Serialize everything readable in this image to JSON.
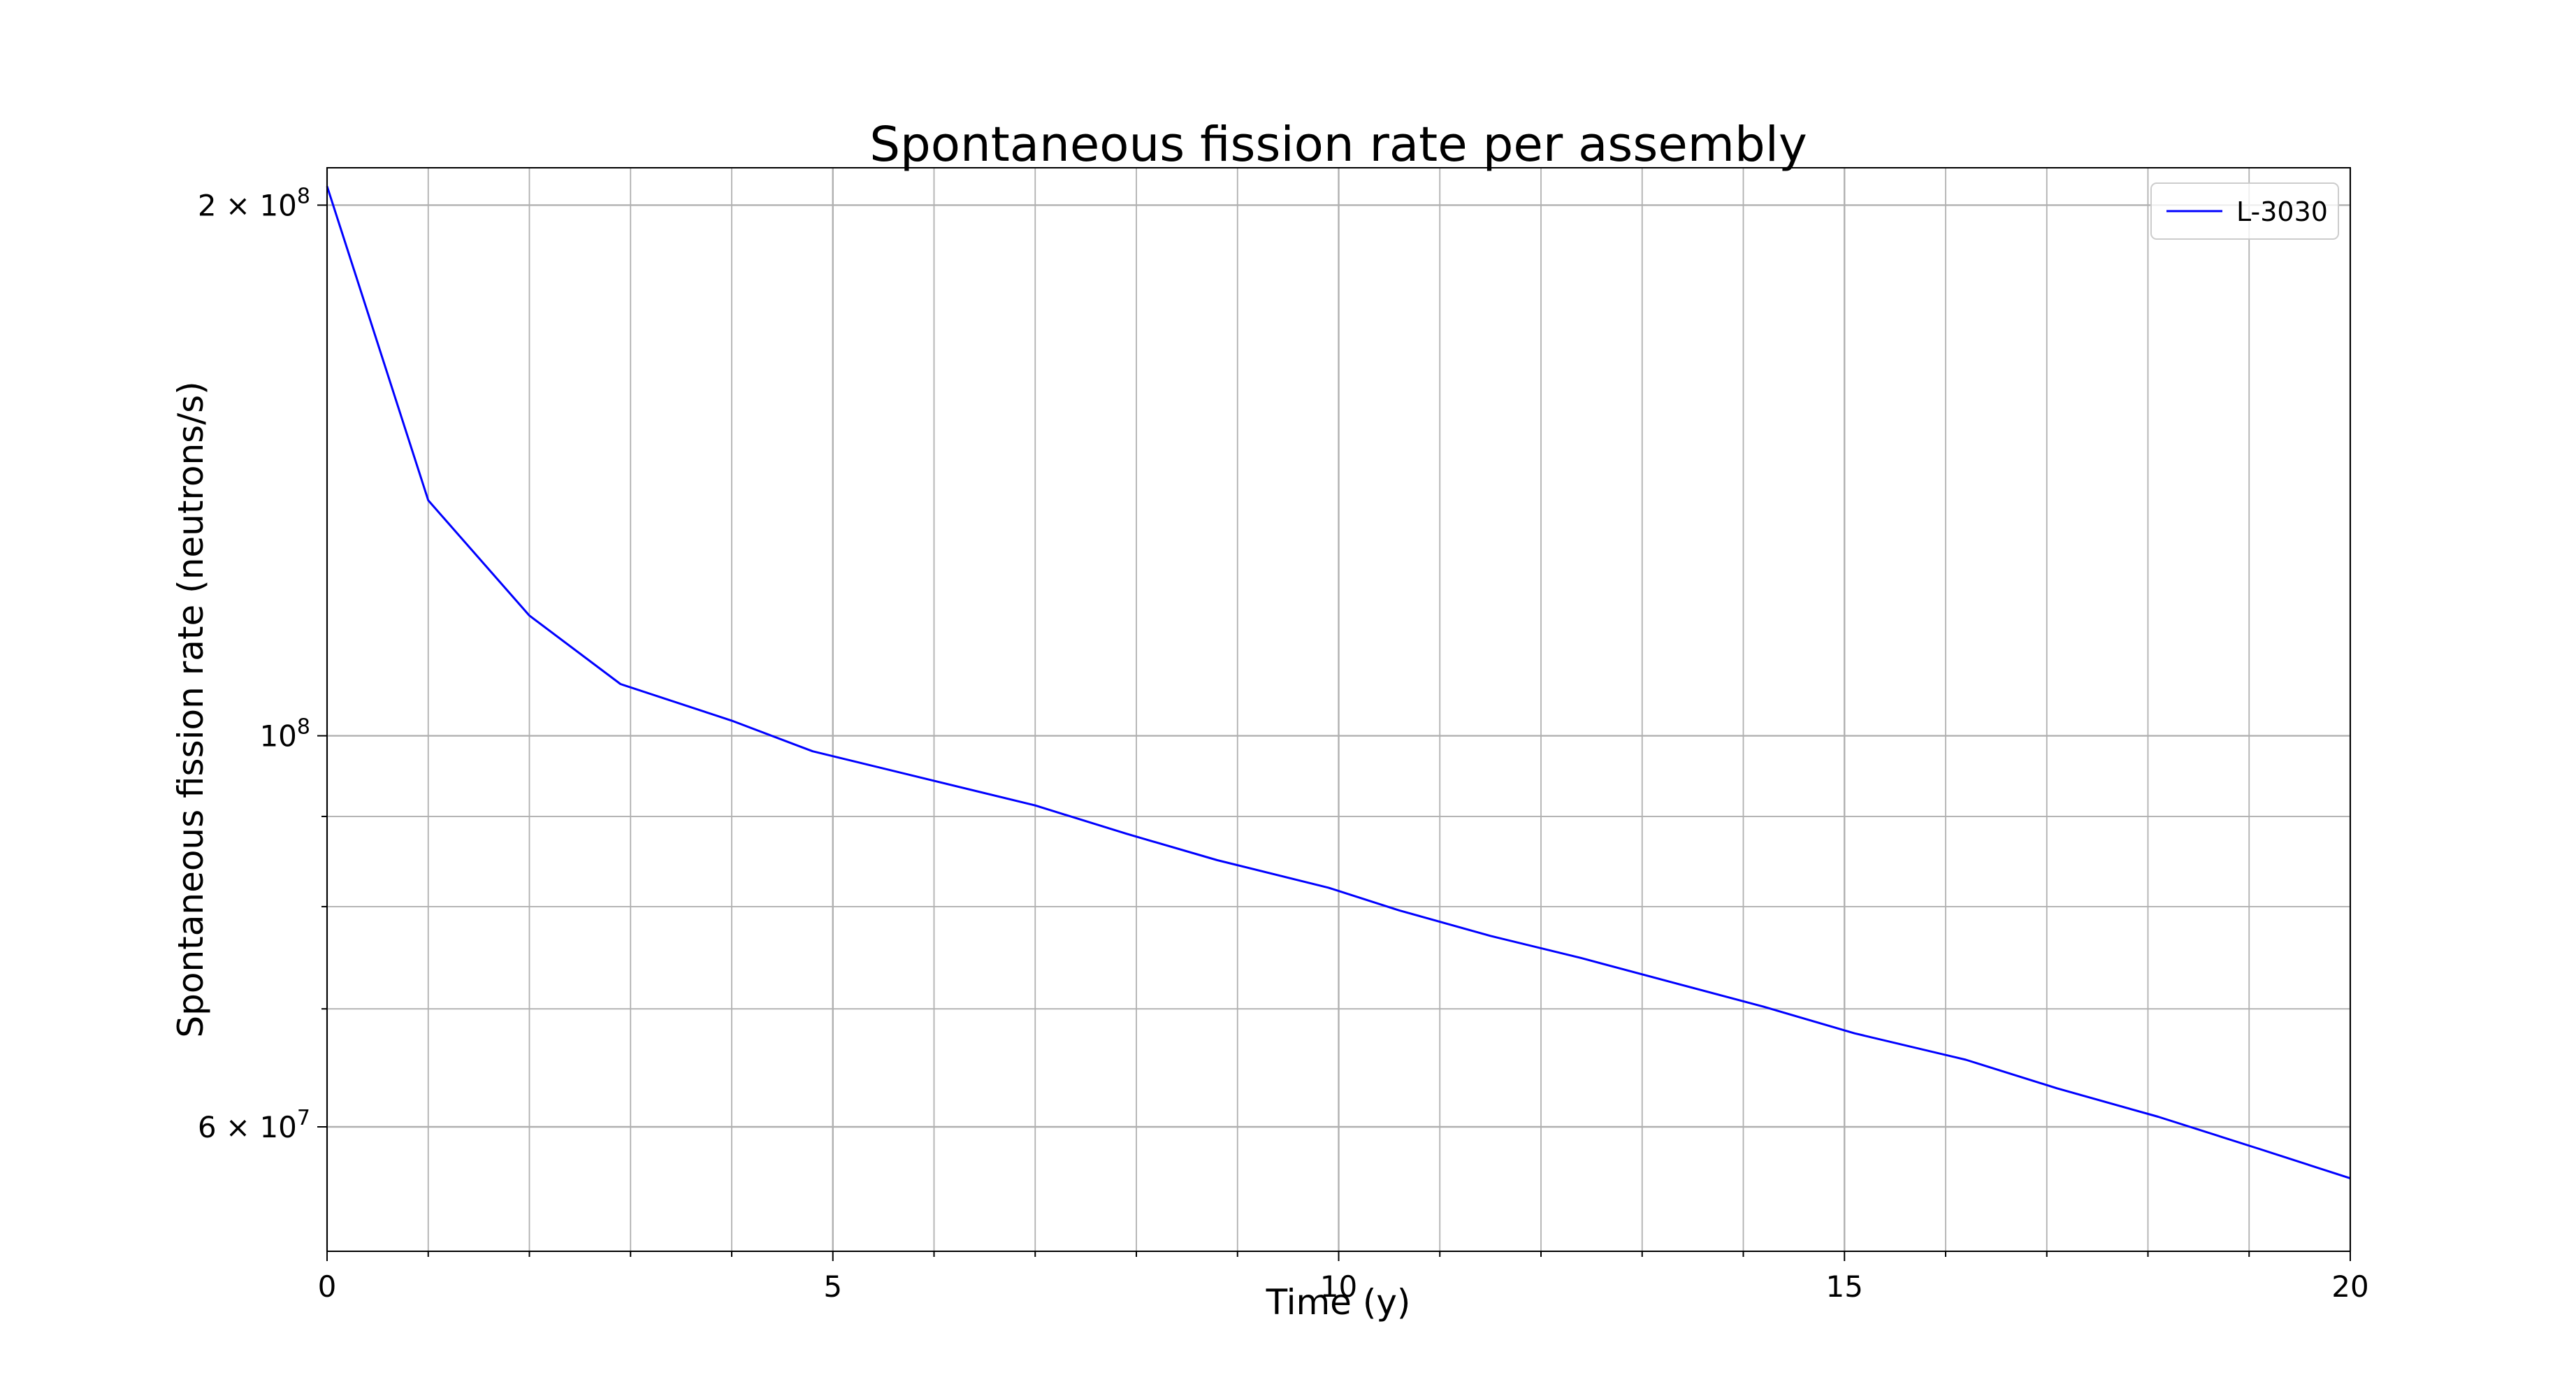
{
  "chart_data": {
    "type": "line",
    "title": "Spontaneous fission rate per assembly",
    "xlabel": "Time (y)",
    "ylabel": "Spontaneous fission rate (neutrons/s)",
    "xlim": [
      0,
      20
    ],
    "ylim": [
      51000000,
      210000000
    ],
    "yscale": "log",
    "grid": true,
    "legend_position": "top-right",
    "x_ticks": [
      {
        "value": 0,
        "label": "0"
      },
      {
        "value": 5,
        "label": "5"
      },
      {
        "value": 10,
        "label": "10"
      },
      {
        "value": 15,
        "label": "15"
      },
      {
        "value": 20,
        "label": "20"
      }
    ],
    "x_minor_ticks": [
      1,
      2,
      3,
      4,
      6,
      7,
      8,
      9,
      11,
      12,
      13,
      14,
      16,
      17,
      18,
      19
    ],
    "y_ticks": [
      {
        "value": 200000000,
        "mantissa": "2",
        "base": "10",
        "exponent": "8"
      },
      {
        "value": 100000000,
        "mantissa": "",
        "base": "10",
        "exponent": "8"
      },
      {
        "value": 60000000,
        "mantissa": "6",
        "base": "10",
        "exponent": "7"
      }
    ],
    "y_minor_gridlines": [
      70000000,
      80000000,
      90000000
    ],
    "series": [
      {
        "name": "L-3030",
        "color": "#0000ff",
        "x": [
          0,
          1,
          2,
          2.9,
          4,
          4.8,
          5.9,
          7,
          7.9,
          8.8,
          9.9,
          10.6,
          11.5,
          12.4,
          13.4,
          14.2,
          15.1,
          16.2,
          17.1,
          18.1,
          19.1,
          20
        ],
        "y": [
          205000000,
          136000000,
          117000000,
          107000000,
          102000000,
          98000000,
          94600000,
          91300000,
          88000000,
          85000000,
          82000000,
          79600000,
          77000000,
          74800000,
          72200000,
          70200000,
          67800000,
          65500000,
          63100000,
          60800000,
          58300000,
          56100000
        ]
      }
    ]
  }
}
